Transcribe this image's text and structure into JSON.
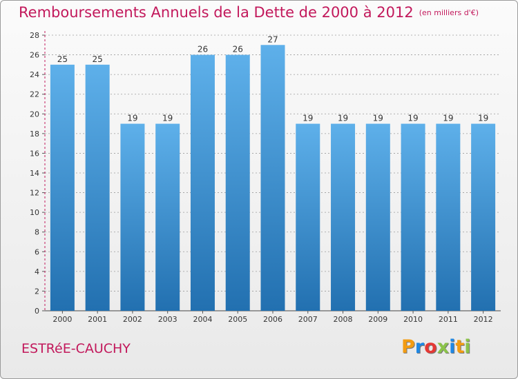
{
  "title": "Remboursements Annuels de la Dette de 2000 à 2012",
  "unit": "(en milliers d'€)",
  "commune": "ESTRéE-CAUCHY",
  "logo": {
    "text": "Proxiti",
    "colors": [
      "#f39c12",
      "#1e88e5",
      "#e53935",
      "#8bc34a",
      "#1e88e5",
      "#f39c12",
      "#8bc34a"
    ]
  },
  "colors": {
    "bar_top": "#5eb0ea",
    "bar_bottom": "#2270b0",
    "accent": "#c2185b",
    "grid": "#9a9a9a"
  },
  "chart_data": {
    "type": "bar",
    "categories": [
      "2000",
      "2001",
      "2002",
      "2003",
      "2004",
      "2005",
      "2006",
      "2007",
      "2008",
      "2009",
      "2010",
      "2011",
      "2012"
    ],
    "values": [
      25,
      25,
      19,
      19,
      26,
      26,
      27,
      19,
      19,
      19,
      19,
      19,
      19
    ],
    "title": "Remboursements Annuels de la Dette de 2000 à 2012",
    "ylim": [
      0,
      28
    ],
    "yticks": [
      0,
      2,
      4,
      6,
      8,
      10,
      12,
      14,
      16,
      18,
      20,
      22,
      24,
      26,
      28
    ],
    "grid": true,
    "data_labels": true
  }
}
